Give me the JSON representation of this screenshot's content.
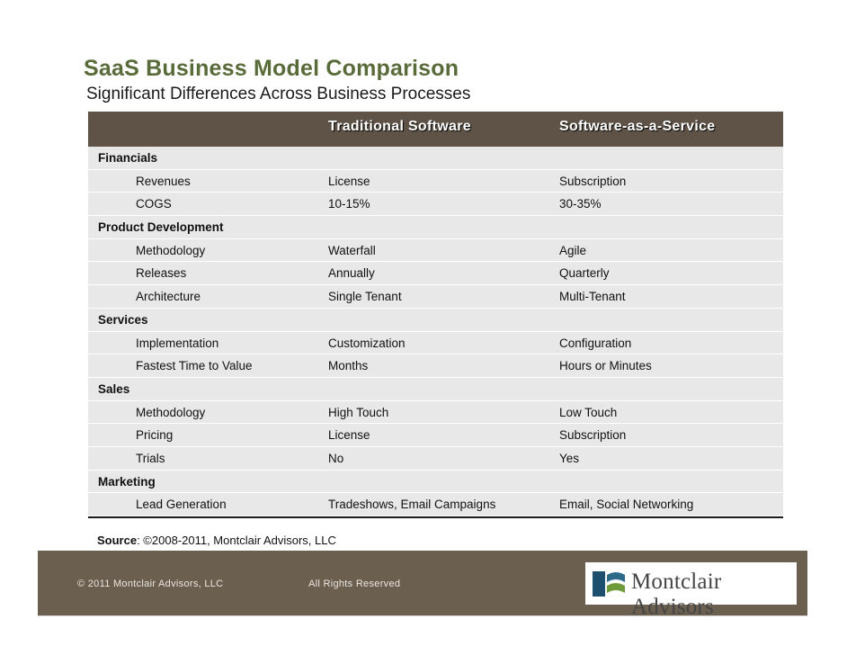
{
  "title": "SaaS Business Model Comparison",
  "subtitle": "Significant Differences Across Business Processes",
  "table": {
    "headers": [
      "",
      "Traditional Software",
      "Software-as-a-Service"
    ],
    "rows": [
      {
        "type": "category",
        "label": "Financials"
      },
      {
        "type": "item",
        "label": "Revenues",
        "traditional": "License",
        "saas": "Subscription"
      },
      {
        "type": "item",
        "label": "COGS",
        "traditional": "10-15%",
        "saas": "30-35%"
      },
      {
        "type": "category",
        "label": "Product Development"
      },
      {
        "type": "item",
        "label": "Methodology",
        "traditional": "Waterfall",
        "saas": "Agile"
      },
      {
        "type": "item",
        "label": "Releases",
        "traditional": "Annually",
        "saas": "Quarterly"
      },
      {
        "type": "item",
        "label": "Architecture",
        "traditional": "Single Tenant",
        "saas": "Multi-Tenant"
      },
      {
        "type": "category",
        "label": "Services"
      },
      {
        "type": "item",
        "label": "Implementation",
        "traditional": "Customization",
        "saas": "Configuration"
      },
      {
        "type": "item",
        "label": "Fastest Time to Value",
        "traditional": "Months",
        "saas": "Hours or Minutes"
      },
      {
        "type": "category",
        "label": "Sales"
      },
      {
        "type": "item",
        "label": "Methodology",
        "traditional": "High Touch",
        "saas": "Low Touch"
      },
      {
        "type": "item",
        "label": "Pricing",
        "traditional": "License",
        "saas": "Subscription"
      },
      {
        "type": "item",
        "label": "Trials",
        "traditional": "No",
        "saas": "Yes"
      },
      {
        "type": "category",
        "label": "Marketing"
      },
      {
        "type": "item",
        "label": "Lead Generation",
        "traditional": "Tradeshows, Email Campaigns",
        "saas": "Email, Social Networking"
      }
    ]
  },
  "source": {
    "label": "Source",
    "text": ": ©2008-2011, Montclair Advisors, LLC"
  },
  "footer": {
    "copyright": "© 2011 Montclair Advisors, LLC",
    "rights": "All Rights Reserved",
    "logo_text": "Montclair Advisors"
  },
  "colors": {
    "title": "#5a6b3a",
    "header_bg": "#5e5346",
    "footer_bg": "#6b5f50",
    "row_shade": "#e9e8e8"
  }
}
